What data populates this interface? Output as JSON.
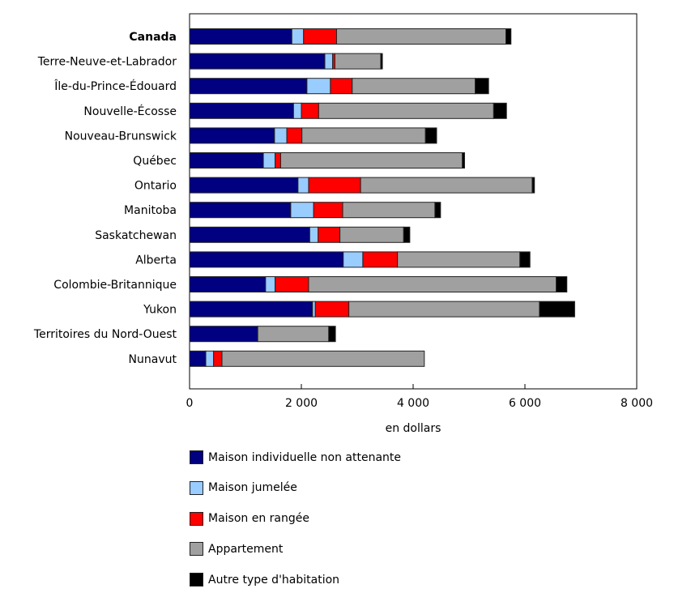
{
  "chart_data": {
    "type": "bar",
    "orientation": "horizontal",
    "stacked": true,
    "title": "",
    "xlabel": "en dollars",
    "ylabel": "",
    "xlim": [
      0,
      8000
    ],
    "xticks": [
      0,
      2000,
      4000,
      6000,
      8000
    ],
    "xtick_labels": [
      "0",
      "2 000",
      "4 000",
      "6 000",
      "8 000"
    ],
    "grid": false,
    "legend_position": "bottom",
    "categories": [
      "Canada",
      "Terre-Neuve-et-Labrador",
      "Île-du-Prince-Édouard",
      "Nouvelle-Écosse",
      "Nouveau-Brunswick",
      "Québec",
      "Ontario",
      "Manitoba",
      "Saskatchewan",
      "Alberta",
      "Colombie-Britannique",
      "Yukon",
      "Territoires du Nord-Ouest",
      "Nunavut"
    ],
    "bold_categories": [
      "Canada"
    ],
    "series": [
      {
        "name": "Maison individuelle non attenante",
        "color": "#000080",
        "values": [
          1830,
          2420,
          2100,
          1860,
          1520,
          1320,
          1940,
          1810,
          2150,
          2750,
          1360,
          2200,
          1220,
          290
        ]
      },
      {
        "name": "Maison jumelée",
        "color": "#99ccff",
        "values": [
          210,
          140,
          420,
          140,
          220,
          210,
          190,
          410,
          150,
          350,
          170,
          50,
          0,
          140
        ]
      },
      {
        "name": "Maison en rangée",
        "color": "#ff0000",
        "values": [
          590,
          40,
          390,
          310,
          270,
          100,
          930,
          520,
          390,
          620,
          600,
          600,
          0,
          150
        ]
      },
      {
        "name": "Appartement",
        "color": "#a0a0a0",
        "values": [
          3030,
          820,
          2200,
          3130,
          2210,
          3250,
          3070,
          1650,
          1140,
          2190,
          4430,
          3410,
          1270,
          3620
        ]
      },
      {
        "name": "Autre type d'habitation",
        "color": "#000000",
        "values": [
          90,
          30,
          240,
          230,
          200,
          40,
          40,
          100,
          110,
          180,
          190,
          630,
          120,
          0
        ]
      }
    ]
  }
}
